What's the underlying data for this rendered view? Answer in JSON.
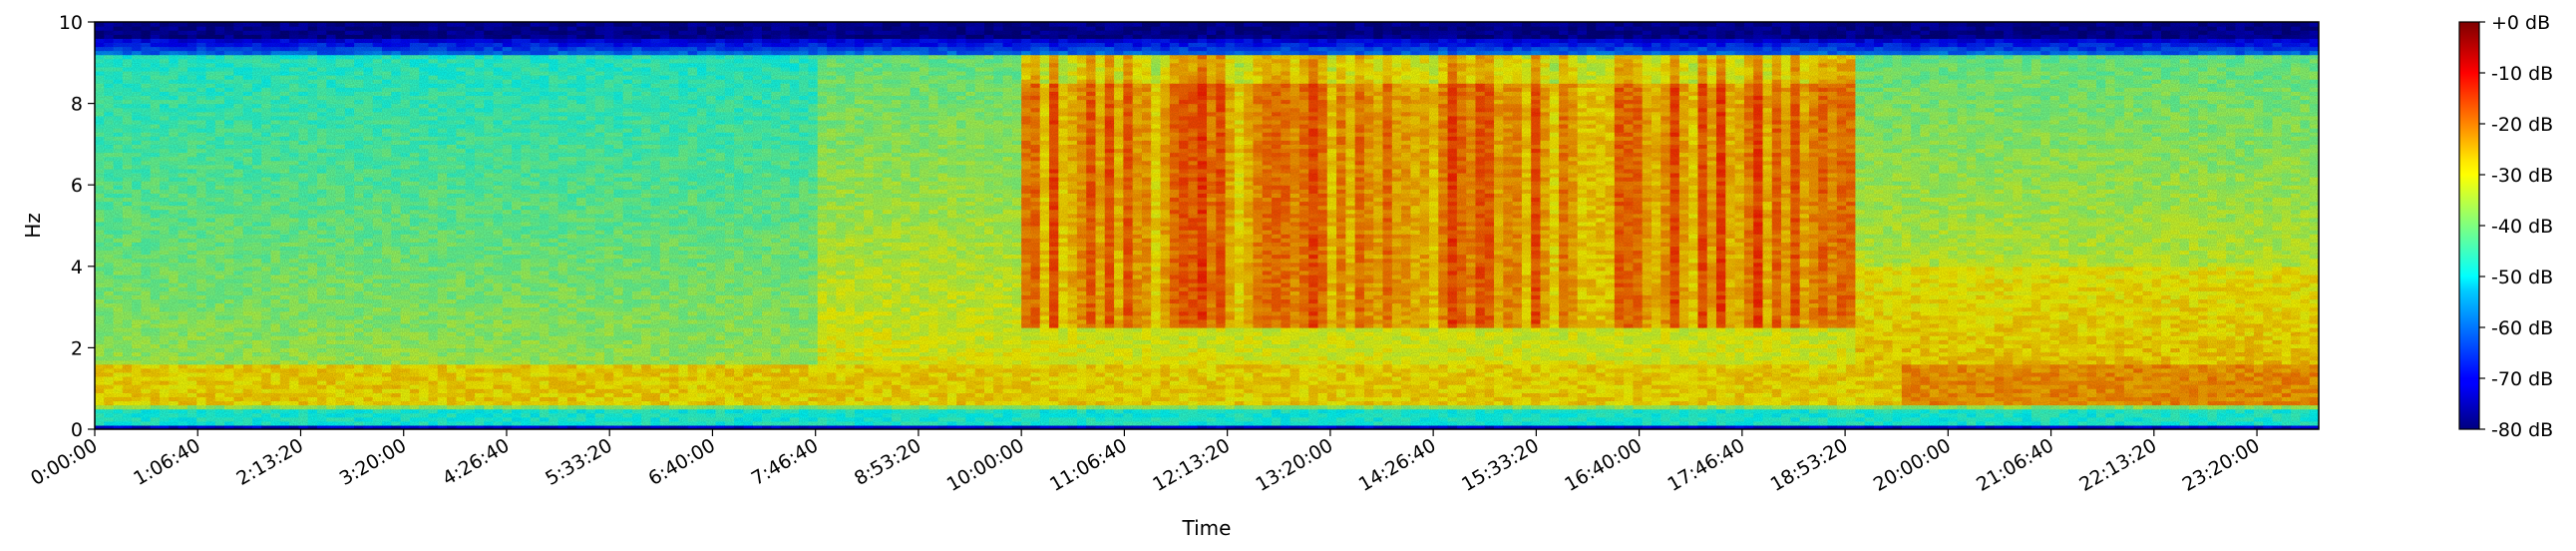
{
  "chart_data": {
    "type": "heatmap",
    "title": "",
    "xlabel": "Time",
    "ylabel": "Hz",
    "x_range_seconds": [
      0,
      86400
    ],
    "x_ticks": [
      "0:00:00",
      "1:06:40",
      "2:13:20",
      "3:20:00",
      "4:26:40",
      "5:33:20",
      "6:40:00",
      "7:46:40",
      "8:53:20",
      "10:00:00",
      "11:06:40",
      "12:13:20",
      "13:20:00",
      "14:26:40",
      "15:33:20",
      "16:40:00",
      "17:46:40",
      "18:53:20",
      "20:00:00",
      "21:06:40",
      "22:13:20",
      "23:20:00"
    ],
    "x_tick_values_seconds": [
      0,
      4000,
      8000,
      12000,
      16000,
      20000,
      24000,
      28000,
      32000,
      36000,
      40000,
      44000,
      48000,
      52000,
      56000,
      60000,
      64000,
      68000,
      72000,
      76000,
      80000,
      84000
    ],
    "ylim": [
      0,
      10
    ],
    "y_ticks": [
      "0",
      "2",
      "4",
      "6",
      "8",
      "10"
    ],
    "y_tick_values": [
      0,
      2,
      4,
      6,
      8,
      10
    ],
    "colorbar": {
      "colormap": "jet",
      "range_db": [
        -80,
        0
      ],
      "labels": [
        "+0 dB",
        "-10 dB",
        "-20 dB",
        "-30 dB",
        "-40 dB",
        "-50 dB",
        "-60 dB",
        "-70 dB",
        "-80 dB"
      ],
      "values_db": [
        0,
        -10,
        -20,
        -30,
        -40,
        -50,
        -60,
        -70,
        -80
      ]
    },
    "description_levels_db": {
      "background_upper_band": -45,
      "low_freq_band_0_5_to_1_5_hz": -25,
      "active_period_10h_to_19h_3_to_9_hz": -22,
      "top_band_9_3_to_10_hz": -72
    },
    "grid": false
  },
  "colors": {
    "axis": "#000000",
    "background": "#ffffff"
  }
}
